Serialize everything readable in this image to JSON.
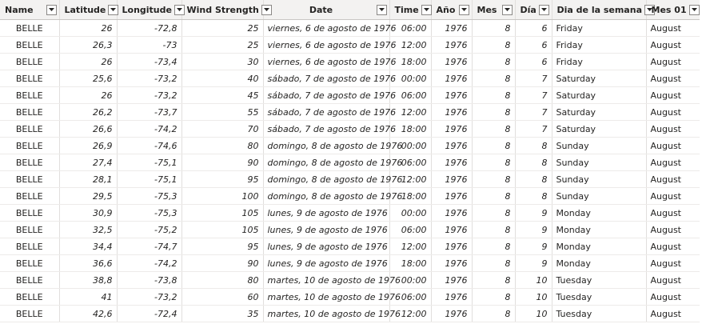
{
  "columns": [
    {
      "key": "name",
      "label": "Name",
      "align": "left-center",
      "italic": false
    },
    {
      "key": "latitude",
      "label": "Latitude",
      "align": "right",
      "italic": true
    },
    {
      "key": "longitude",
      "label": "Longitude",
      "align": "right",
      "italic": true
    },
    {
      "key": "wind",
      "label": "Wind Strength",
      "align": "right",
      "italic": true
    },
    {
      "key": "date",
      "label": "Date",
      "align": "right",
      "italic": true
    },
    {
      "key": "time",
      "label": "Time",
      "align": "right",
      "italic": true
    },
    {
      "key": "year",
      "label": "Año",
      "align": "right",
      "italic": true
    },
    {
      "key": "month",
      "label": "Mes",
      "align": "right",
      "italic": true
    },
    {
      "key": "day",
      "label": "Día",
      "align": "right",
      "italic": true
    },
    {
      "key": "weekday",
      "label": "Dia de la semana",
      "align": "left",
      "italic": false
    },
    {
      "key": "month01",
      "label": "Mes 01",
      "align": "left",
      "italic": false
    }
  ],
  "rows": [
    [
      "BELLE",
      "26",
      "-72,8",
      "25",
      "viernes, 6 de agosto de 1976",
      "06:00",
      "1976",
      "8",
      "6",
      "Friday",
      "August"
    ],
    [
      "BELLE",
      "26,3",
      "-73",
      "25",
      "viernes, 6 de agosto de 1976",
      "12:00",
      "1976",
      "8",
      "6",
      "Friday",
      "August"
    ],
    [
      "BELLE",
      "26",
      "-73,4",
      "30",
      "viernes, 6 de agosto de 1976",
      "18:00",
      "1976",
      "8",
      "6",
      "Friday",
      "August"
    ],
    [
      "BELLE",
      "25,6",
      "-73,2",
      "40",
      "sábado, 7 de agosto de 1976",
      "00:00",
      "1976",
      "8",
      "7",
      "Saturday",
      "August"
    ],
    [
      "BELLE",
      "26",
      "-73,2",
      "45",
      "sábado, 7 de agosto de 1976",
      "06:00",
      "1976",
      "8",
      "7",
      "Saturday",
      "August"
    ],
    [
      "BELLE",
      "26,2",
      "-73,7",
      "55",
      "sábado, 7 de agosto de 1976",
      "12:00",
      "1976",
      "8",
      "7",
      "Saturday",
      "August"
    ],
    [
      "BELLE",
      "26,6",
      "-74,2",
      "70",
      "sábado, 7 de agosto de 1976",
      "18:00",
      "1976",
      "8",
      "7",
      "Saturday",
      "August"
    ],
    [
      "BELLE",
      "26,9",
      "-74,6",
      "80",
      "domingo, 8 de agosto de 1976",
      "00:00",
      "1976",
      "8",
      "8",
      "Sunday",
      "August"
    ],
    [
      "BELLE",
      "27,4",
      "-75,1",
      "90",
      "domingo, 8 de agosto de 1976",
      "06:00",
      "1976",
      "8",
      "8",
      "Sunday",
      "August"
    ],
    [
      "BELLE",
      "28,1",
      "-75,1",
      "95",
      "domingo, 8 de agosto de 1976",
      "12:00",
      "1976",
      "8",
      "8",
      "Sunday",
      "August"
    ],
    [
      "BELLE",
      "29,5",
      "-75,3",
      "100",
      "domingo, 8 de agosto de 1976",
      "18:00",
      "1976",
      "8",
      "8",
      "Sunday",
      "August"
    ],
    [
      "BELLE",
      "30,9",
      "-75,3",
      "105",
      "lunes, 9 de agosto de 1976",
      "00:00",
      "1976",
      "8",
      "9",
      "Monday",
      "August"
    ],
    [
      "BELLE",
      "32,5",
      "-75,2",
      "105",
      "lunes, 9 de agosto de 1976",
      "06:00",
      "1976",
      "8",
      "9",
      "Monday",
      "August"
    ],
    [
      "BELLE",
      "34,4",
      "-74,7",
      "95",
      "lunes, 9 de agosto de 1976",
      "12:00",
      "1976",
      "8",
      "9",
      "Monday",
      "August"
    ],
    [
      "BELLE",
      "36,6",
      "-74,2",
      "90",
      "lunes, 9 de agosto de 1976",
      "18:00",
      "1976",
      "8",
      "9",
      "Monday",
      "August"
    ],
    [
      "BELLE",
      "38,8",
      "-73,8",
      "80",
      "martes, 10 de agosto de 1976",
      "00:00",
      "1976",
      "8",
      "10",
      "Tuesday",
      "August"
    ],
    [
      "BELLE",
      "41",
      "-73,2",
      "60",
      "martes, 10 de agosto de 1976",
      "06:00",
      "1976",
      "8",
      "10",
      "Tuesday",
      "August"
    ],
    [
      "BELLE",
      "42,6",
      "-72,4",
      "35",
      "martes, 10 de agosto de 1976",
      "12:00",
      "1976",
      "8",
      "10",
      "Tuesday",
      "August"
    ]
  ],
  "icons": {
    "filter": "chevron-down-icon"
  },
  "colors": {
    "header_bg": "#f3f2f1",
    "grid_line": "#e1dfdd",
    "text": "#252423"
  }
}
